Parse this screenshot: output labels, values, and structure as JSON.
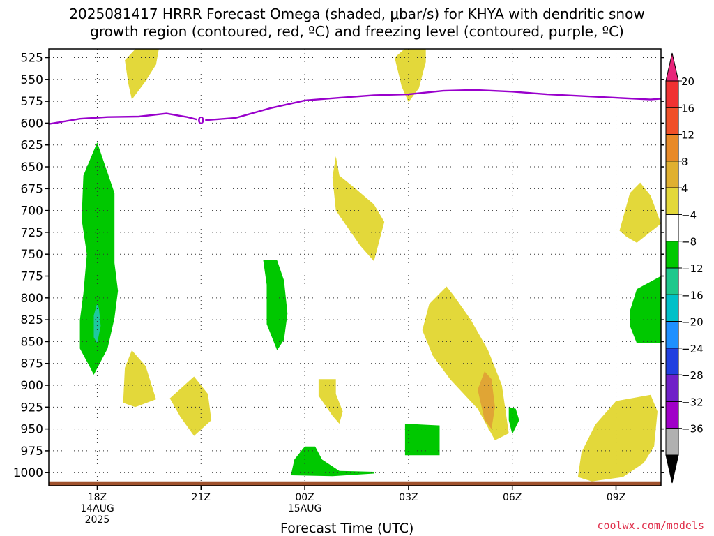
{
  "title": "2025081417 HRRR Forecast Omega (shaded, μbar/s) for KHYA with dendritic snow\ngrowth region (contoured, red, ºC) and freezing level (contoured, purple, ºC)",
  "credit": "coolwx.com/models",
  "colors": {
    "yellow": "#e3d83a",
    "orange": "#e0a535",
    "green": "#00c800",
    "teal": "#1ec8a0",
    "purple_line": "#9900cc",
    "ground": "#a0522d"
  },
  "chart_data": {
    "type": "contour",
    "xlabel": "Forecast Time (UTC)",
    "ylabel": "",
    "x_range_hours": [
      16.6,
      34.3
    ],
    "y_range_mb": [
      1015,
      515
    ],
    "y_ticks": [
      {
        "v": 525,
        "label": "525"
      },
      {
        "v": 550,
        "label": "550"
      },
      {
        "v": 575,
        "label": "575"
      },
      {
        "v": 600,
        "label": "600"
      },
      {
        "v": 625,
        "label": "625"
      },
      {
        "v": 650,
        "label": "650"
      },
      {
        "v": 675,
        "label": "675"
      },
      {
        "v": 700,
        "label": "700"
      },
      {
        "v": 725,
        "label": "725"
      },
      {
        "v": 750,
        "label": "750"
      },
      {
        "v": 775,
        "label": "775"
      },
      {
        "v": 800,
        "label": "800"
      },
      {
        "v": 825,
        "label": "825"
      },
      {
        "v": 850,
        "label": "850"
      },
      {
        "v": 875,
        "label": "875"
      },
      {
        "v": 900,
        "label": "900"
      },
      {
        "v": 925,
        "label": "925"
      },
      {
        "v": 950,
        "label": "950"
      },
      {
        "v": 975,
        "label": "975"
      },
      {
        "v": 1000,
        "label": "1000"
      }
    ],
    "x_ticks": [
      {
        "h": 18,
        "label": "18Z",
        "sub": [
          "14AUG",
          "2025"
        ]
      },
      {
        "h": 21,
        "label": "21Z",
        "sub": []
      },
      {
        "h": 24,
        "label": "00Z",
        "sub": [
          "15AUG"
        ]
      },
      {
        "h": 27,
        "label": "03Z",
        "sub": []
      },
      {
        "h": 30,
        "label": "06Z",
        "sub": []
      },
      {
        "h": 33,
        "label": "09Z",
        "sub": []
      }
    ],
    "freezing_level": {
      "label": "0",
      "label_at": [
        21,
        597
      ],
      "points": [
        [
          16.6,
          601
        ],
        [
          17.5,
          595
        ],
        [
          18.3,
          593
        ],
        [
          19.2,
          592.5
        ],
        [
          20,
          589
        ],
        [
          20.6,
          593
        ],
        [
          21,
          597
        ],
        [
          22,
          594
        ],
        [
          23,
          583
        ],
        [
          24,
          574
        ],
        [
          25,
          571
        ],
        [
          26,
          568
        ],
        [
          27,
          567
        ],
        [
          28,
          563
        ],
        [
          28.9,
          562
        ],
        [
          30,
          564
        ],
        [
          31,
          567
        ],
        [
          32,
          569
        ],
        [
          33,
          571
        ],
        [
          34,
          573
        ],
        [
          34.3,
          572
        ]
      ]
    },
    "ground_pressure_mb": 1010,
    "regions": [
      {
        "level": "4 to 8",
        "color": "yellow",
        "points": [
          [
            19.8,
            511
          ],
          [
            19.2,
            511
          ],
          [
            18.8,
            528
          ],
          [
            18.9,
            555
          ],
          [
            19.0,
            573
          ],
          [
            19.4,
            552
          ],
          [
            19.7,
            533
          ]
        ]
      },
      {
        "level": "4 to 8",
        "color": "yellow",
        "points": [
          [
            27.0,
            511
          ],
          [
            26.6,
            525
          ],
          [
            26.8,
            558
          ],
          [
            27.0,
            576
          ],
          [
            27.3,
            560
          ],
          [
            27.5,
            530
          ],
          [
            27.5,
            511
          ]
        ]
      },
      {
        "level": "4 to 8",
        "color": "yellow",
        "points": [
          [
            24.9,
            638
          ],
          [
            24.8,
            662
          ],
          [
            24.9,
            700
          ],
          [
            25.6,
            740
          ],
          [
            26.0,
            758
          ],
          [
            26.3,
            713
          ],
          [
            26.0,
            693
          ],
          [
            25.5,
            676
          ],
          [
            25.0,
            660
          ]
        ]
      },
      {
        "level": "4 to 8",
        "color": "yellow",
        "points": [
          [
            33.7,
            668
          ],
          [
            33.4,
            680
          ],
          [
            33.1,
            723
          ],
          [
            33.3,
            730
          ],
          [
            33.6,
            737
          ],
          [
            34.3,
            715
          ],
          [
            34.0,
            683
          ]
        ]
      },
      {
        "level": "4 to 8",
        "color": "yellow",
        "points": [
          [
            28.1,
            787
          ],
          [
            27.6,
            807
          ],
          [
            27.4,
            837
          ],
          [
            27.7,
            866
          ],
          [
            28.2,
            893
          ],
          [
            29,
            927
          ],
          [
            29.5,
            963
          ],
          [
            29.9,
            955
          ],
          [
            29.7,
            900
          ],
          [
            29.3,
            860
          ],
          [
            28.8,
            825
          ],
          [
            28.3,
            797
          ]
        ]
      },
      {
        "level": "4 to 8",
        "color": "yellow",
        "points": [
          [
            19.0,
            860
          ],
          [
            18.8,
            880
          ],
          [
            18.75,
            920
          ],
          [
            19.1,
            925
          ],
          [
            19.7,
            916
          ],
          [
            19.4,
            878
          ]
        ]
      },
      {
        "level": "4 to 8",
        "color": "yellow",
        "points": [
          [
            20.8,
            890
          ],
          [
            20.1,
            915
          ],
          [
            20.4,
            936
          ],
          [
            20.8,
            958
          ],
          [
            21.3,
            940
          ],
          [
            21.2,
            910
          ]
        ]
      },
      {
        "level": "4 to 8",
        "color": "yellow",
        "points": [
          [
            24.4,
            893
          ],
          [
            24.4,
            912
          ],
          [
            24.8,
            935
          ],
          [
            25.0,
            944
          ],
          [
            25.1,
            930
          ],
          [
            24.9,
            910
          ],
          [
            24.9,
            893
          ]
        ]
      },
      {
        "level": "4 to 8",
        "color": "yellow",
        "points": [
          [
            34.0,
            911
          ],
          [
            33.0,
            918
          ],
          [
            32.4,
            945
          ],
          [
            32.0,
            977
          ],
          [
            31.9,
            1005
          ],
          [
            32.3,
            1010
          ],
          [
            33.2,
            1005
          ],
          [
            33.8,
            989
          ],
          [
            34.1,
            970
          ],
          [
            34.2,
            930
          ]
        ]
      },
      {
        "level": "8 to 12",
        "color": "orange",
        "points": [
          [
            29.2,
            884
          ],
          [
            29.0,
            905
          ],
          [
            29.2,
            940
          ],
          [
            29.4,
            950
          ],
          [
            29.5,
            925
          ],
          [
            29.4,
            893
          ]
        ]
      },
      {
        "level": "-4 to -8",
        "color": "green",
        "points": [
          [
            18.0,
            622
          ],
          [
            17.6,
            660
          ],
          [
            17.55,
            710
          ],
          [
            17.7,
            750
          ],
          [
            17.6,
            795
          ],
          [
            17.5,
            825
          ],
          [
            17.5,
            858
          ],
          [
            17.8,
            880
          ],
          [
            17.9,
            888
          ],
          [
            18.3,
            858
          ],
          [
            18.5,
            823
          ],
          [
            18.6,
            792
          ],
          [
            18.5,
            760
          ],
          [
            18.5,
            705
          ],
          [
            18.5,
            680
          ]
        ]
      },
      {
        "level": "-4 to -8",
        "color": "green",
        "points": [
          [
            22.8,
            757
          ],
          [
            22.9,
            785
          ],
          [
            22.9,
            830
          ],
          [
            23.2,
            860
          ],
          [
            23.4,
            848
          ],
          [
            23.5,
            818
          ],
          [
            23.4,
            780
          ],
          [
            23.2,
            757
          ]
        ]
      },
      {
        "level": "-4 to -8",
        "color": "green",
        "points": [
          [
            34.3,
            775
          ],
          [
            33.6,
            790
          ],
          [
            33.4,
            815
          ],
          [
            33.4,
            832
          ],
          [
            33.6,
            852
          ],
          [
            34.3,
            852
          ]
        ]
      },
      {
        "level": "-4 to -8",
        "color": "green",
        "points": [
          [
            26.9,
            944
          ],
          [
            26.9,
            980
          ],
          [
            27.9,
            980
          ],
          [
            27.9,
            946
          ]
        ]
      },
      {
        "level": "-4 to -8",
        "color": "green",
        "points": [
          [
            29.9,
            925
          ],
          [
            29.9,
            940
          ],
          [
            30.0,
            956
          ],
          [
            30.2,
            940
          ],
          [
            30.1,
            927
          ]
        ]
      },
      {
        "level": "-4 to -8",
        "color": "green",
        "points": [
          [
            24.0,
            970
          ],
          [
            23.7,
            985
          ],
          [
            23.6,
            1003
          ],
          [
            24.8,
            1004
          ],
          [
            26.0,
            1001
          ],
          [
            26.0,
            999
          ],
          [
            25.0,
            998
          ],
          [
            24.5,
            985
          ],
          [
            24.3,
            970
          ]
        ]
      },
      {
        "level": "-8 to -12",
        "color": "teal",
        "points": [
          [
            18.0,
            806
          ],
          [
            17.9,
            820
          ],
          [
            17.9,
            845
          ],
          [
            18.0,
            852
          ],
          [
            18.1,
            832
          ],
          [
            18.05,
            812
          ]
        ]
      }
    ],
    "colorbar": {
      "ticks": [
        "20",
        "16",
        "12",
        "8",
        "4",
        "−4",
        "−8",
        "−12",
        "−16",
        "−20",
        "−24",
        "−28",
        "−32",
        "−36"
      ],
      "bins": [
        {
          "color": "#e8247a"
        },
        {
          "color": "#f03232"
        },
        {
          "color": "#f05028"
        },
        {
          "color": "#e88a28"
        },
        {
          "color": "#e0b030"
        },
        {
          "color": "#e3d83a"
        },
        {
          "color": "#ffffff"
        },
        {
          "color": "#00c800"
        },
        {
          "color": "#1ec88c"
        },
        {
          "color": "#00c0c8"
        },
        {
          "color": "#1e90ff"
        },
        {
          "color": "#2040e0"
        },
        {
          "color": "#7020c8"
        },
        {
          "color": "#a000c8"
        },
        {
          "color": "#b0b0b0"
        },
        {
          "color": "#000000"
        }
      ]
    }
  }
}
